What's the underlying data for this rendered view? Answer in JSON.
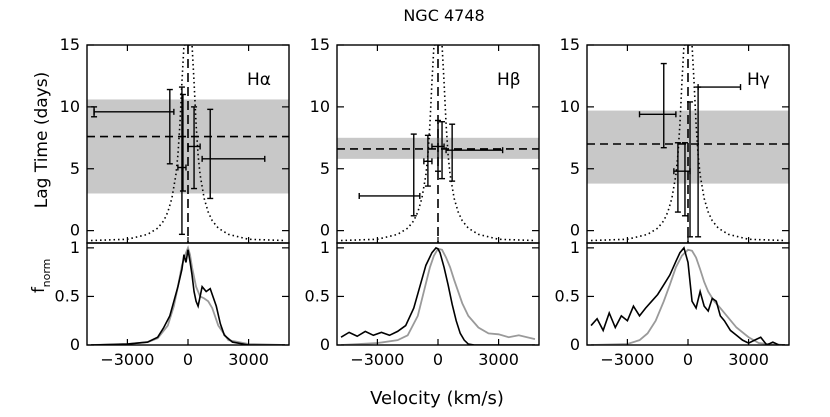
{
  "figure": {
    "title": "NGC 4748",
    "ylabel_top": "Lag Time  (days)",
    "ylabel_bottom": "f",
    "ylabel_bottom_sub": "norm",
    "xlabel": "Velocity  (km/s)"
  },
  "chart_data": [
    {
      "type": "scatter",
      "panel": "H-alpha lag vs velocity",
      "line_label": "Hα",
      "xlim": [
        -5000,
        5000
      ],
      "ylim": [
        -1,
        15
      ],
      "xticks": [
        -3000,
        0,
        3000
      ],
      "yticks": [
        0,
        5,
        10,
        15
      ],
      "mean_lag": 7.6,
      "mean_lag_band": [
        3.0,
        10.6
      ],
      "lag_bins": [
        {
          "xlo": -4650,
          "xhi": -700,
          "x": -4650,
          "y": 9.6,
          "yerr_lo": 9.2,
          "yerr_hi": 10.0
        },
        {
          "xlo": -900,
          "xhi": -900,
          "x": -900,
          "y": 7.6,
          "yerr_lo": 5.4,
          "yerr_hi": 11.4
        },
        {
          "xlo": -500,
          "xhi": -100,
          "x": -300,
          "y": 5.1,
          "yerr_lo": -0.3,
          "yerr_hi": 11.6
        },
        {
          "xlo": -250,
          "xhi": -250,
          "x": -250,
          "y": 7.5,
          "yerr_lo": 3.2,
          "yerr_hi": 11.0
        },
        {
          "xlo": 0,
          "xhi": 600,
          "x": 300,
          "y": 6.8,
          "yerr_lo": 3.4,
          "yerr_hi": 10.0
        },
        {
          "xlo": 700,
          "xhi": 3800,
          "x": 1100,
          "y": 5.8,
          "yerr_lo": 2.6,
          "yerr_hi": 9.8
        }
      ],
      "dotted_lines_x": [
        -550,
        550
      ],
      "dashed_vline_x": 0,
      "rms_profile": {
        "x": [
          -4800,
          -3000,
          -2000,
          -1500,
          -1200,
          -1000,
          -800,
          -600,
          -500,
          -400,
          -300,
          -200,
          -100,
          0,
          100,
          200,
          300,
          400,
          500,
          600,
          800,
          1000,
          1200,
          1500,
          2000,
          3000,
          4800
        ],
        "y": [
          -0.8,
          -0.7,
          -0.3,
          0.2,
          0.8,
          1.5,
          2.6,
          4.5,
          6.1,
          8.6,
          12.0,
          15.0,
          15.0,
          15.0,
          15.0,
          15.0,
          12.0,
          8.6,
          6.1,
          4.5,
          2.6,
          1.5,
          0.8,
          0.2,
          -0.3,
          -0.7,
          -0.8
        ]
      },
      "flux_black": {
        "x": [
          -4800,
          -3000,
          -2000,
          -1500,
          -1200,
          -900,
          -700,
          -500,
          -300,
          -200,
          -100,
          0,
          100,
          200,
          300,
          400,
          500,
          600,
          700,
          900,
          1100,
          1200,
          1400,
          1600,
          1800,
          2200,
          3000,
          4800
        ],
        "y": [
          0.0,
          0.01,
          0.03,
          0.08,
          0.18,
          0.3,
          0.45,
          0.6,
          0.78,
          0.93,
          0.85,
          0.98,
          0.86,
          0.72,
          0.55,
          0.45,
          0.4,
          0.5,
          0.6,
          0.55,
          0.58,
          0.52,
          0.4,
          0.22,
          0.1,
          0.03,
          0.0,
          0.0
        ]
      },
      "flux_grey": {
        "x": [
          -4800,
          -3000,
          -2000,
          -1500,
          -1000,
          -700,
          -500,
          -300,
          -100,
          0,
          100,
          200,
          400,
          600,
          800,
          1000,
          1200,
          1500,
          2000,
          3000,
          4800
        ],
        "y": [
          0.0,
          0.01,
          0.03,
          0.07,
          0.2,
          0.4,
          0.6,
          0.82,
          0.95,
          1.0,
          0.93,
          0.8,
          0.6,
          0.5,
          0.48,
          0.45,
          0.38,
          0.2,
          0.05,
          0.01,
          0.0
        ]
      }
    },
    {
      "type": "scatter",
      "panel": "H-beta lag vs velocity",
      "line_label": "Hβ",
      "xlim": [
        -5000,
        5000
      ],
      "ylim": [
        -1,
        15
      ],
      "xticks": [
        -3000,
        0,
        3000
      ],
      "yticks": [
        0,
        5,
        10,
        15
      ],
      "mean_lag": 6.6,
      "mean_lag_band": [
        5.8,
        7.5
      ],
      "lag_bins": [
        {
          "xlo": -3900,
          "xhi": -900,
          "x": -2400,
          "y": 2.8,
          "yerr_lo": 2.8,
          "yerr_hi": 2.8
        },
        {
          "xlo": -1200,
          "xhi": -1200,
          "x": -1200,
          "y": 3.2,
          "yerr_lo": 1.2,
          "yerr_hi": 7.8
        },
        {
          "xlo": -700,
          "xhi": -300,
          "x": -500,
          "y": 5.6,
          "yerr_lo": 3.6,
          "yerr_hi": 7.7
        },
        {
          "xlo": -300,
          "xhi": 300,
          "x": 0,
          "y": 6.8,
          "yerr_lo": 4.8,
          "yerr_hi": 8.9
        },
        {
          "xlo": 200,
          "xhi": 200,
          "x": 200,
          "y": 6.5,
          "yerr_lo": 4.2,
          "yerr_hi": 8.8
        },
        {
          "xlo": 400,
          "xhi": 3200,
          "x": 1800,
          "y": 6.5,
          "yerr_lo": 6.5,
          "yerr_hi": 6.5
        },
        {
          "xlo": 700,
          "xhi": 700,
          "x": 700,
          "y": 6.2,
          "yerr_lo": 4.0,
          "yerr_hi": 8.6
        }
      ],
      "dotted_lines_x": [
        -550,
        550
      ],
      "dashed_vline_x": 0,
      "rms_profile": {
        "x": [
          -4800,
          -3000,
          -2000,
          -1500,
          -1200,
          -1000,
          -800,
          -600,
          -500,
          -400,
          -300,
          -200,
          -100,
          0,
          100,
          200,
          300,
          400,
          500,
          600,
          800,
          1000,
          1200,
          1500,
          2000,
          3000,
          4800
        ],
        "y": [
          -0.8,
          -0.7,
          -0.3,
          0.2,
          0.8,
          1.5,
          2.6,
          4.5,
          6.1,
          8.6,
          12.0,
          15.0,
          15.0,
          15.0,
          15.0,
          15.0,
          12.0,
          8.6,
          6.1,
          4.5,
          2.6,
          1.5,
          0.8,
          0.2,
          -0.3,
          -0.7,
          -0.8
        ]
      },
      "flux_black": {
        "x": [
          -4800,
          -4400,
          -4000,
          -3600,
          -3200,
          -2800,
          -2400,
          -2000,
          -1600,
          -1200,
          -900,
          -600,
          -300,
          -100,
          0,
          100,
          300,
          500,
          700,
          900,
          1100,
          1300,
          1500,
          1800,
          2200,
          3000,
          4800
        ],
        "y": [
          0.08,
          0.13,
          0.09,
          0.14,
          0.1,
          0.13,
          0.1,
          0.14,
          0.2,
          0.38,
          0.6,
          0.82,
          0.95,
          1.0,
          0.99,
          0.95,
          0.8,
          0.62,
          0.42,
          0.25,
          0.12,
          0.05,
          0.01,
          0.0,
          0.0,
          0.0,
          0.0
        ]
      },
      "flux_grey": {
        "x": [
          -4800,
          -3000,
          -2000,
          -1500,
          -1000,
          -700,
          -400,
          -200,
          0,
          200,
          400,
          600,
          800,
          1000,
          1200,
          1500,
          2000,
          2500,
          3000,
          3500,
          4000,
          4800
        ],
        "y": [
          0.0,
          0.02,
          0.05,
          0.1,
          0.3,
          0.55,
          0.8,
          0.92,
          0.99,
          0.98,
          0.9,
          0.8,
          0.67,
          0.55,
          0.43,
          0.3,
          0.18,
          0.12,
          0.11,
          0.08,
          0.1,
          0.06
        ]
      }
    },
    {
      "type": "scatter",
      "panel": "H-gamma lag vs velocity",
      "line_label": "Hγ",
      "xlim": [
        -5000,
        5000
      ],
      "ylim": [
        -1,
        15
      ],
      "xticks": [
        -3000,
        0,
        3000
      ],
      "yticks": [
        0,
        5,
        10,
        15
      ],
      "mean_lag": 7.0,
      "mean_lag_band": [
        3.8,
        9.7
      ],
      "lag_bins": [
        {
          "xlo": -2400,
          "xhi": -600,
          "x": -1200,
          "y": 9.4,
          "yerr_lo": 6.7,
          "yerr_hi": 13.5
        },
        {
          "xlo": -700,
          "xhi": 100,
          "x": -500,
          "y": 4.8,
          "yerr_lo": 1.5,
          "yerr_hi": 7.1
        },
        {
          "xlo": -150,
          "xhi": -150,
          "x": -150,
          "y": 4.8,
          "yerr_lo": 1.2,
          "yerr_hi": 7.1
        },
        {
          "xlo": 100,
          "xhi": 100,
          "x": 100,
          "y": 5.0,
          "yerr_lo": -0.5,
          "yerr_hi": 10.4
        },
        {
          "xlo": 500,
          "xhi": 2600,
          "x": 500,
          "y": 11.6,
          "yerr_lo": -0.5,
          "yerr_hi": 11.6
        }
      ],
      "dotted_lines_x": [
        -550,
        550
      ],
      "dashed_vline_x": 0,
      "rms_profile": {
        "x": [
          -4800,
          -3000,
          -2000,
          -1500,
          -1200,
          -1000,
          -800,
          -600,
          -500,
          -400,
          -300,
          -200,
          -100,
          0,
          100,
          200,
          300,
          400,
          500,
          600,
          800,
          1000,
          1200,
          1500,
          2000,
          3000,
          4800
        ],
        "y": [
          -0.8,
          -0.7,
          -0.3,
          0.2,
          0.8,
          1.5,
          2.6,
          4.5,
          6.1,
          8.6,
          12.0,
          15.0,
          15.0,
          15.0,
          15.0,
          15.0,
          12.0,
          8.6,
          6.1,
          4.5,
          2.6,
          1.5,
          0.8,
          0.2,
          -0.3,
          -0.7,
          -0.8
        ]
      },
      "flux_black": {
        "x": [
          -4800,
          -4500,
          -4200,
          -3900,
          -3600,
          -3300,
          -3000,
          -2700,
          -2400,
          -2100,
          -1800,
          -1500,
          -1200,
          -900,
          -600,
          -400,
          -200,
          0,
          200,
          400,
          600,
          800,
          1000,
          1200,
          1400,
          1600,
          1800,
          2100,
          2400,
          2700,
          3000,
          3300,
          3600,
          3900,
          4200,
          4500,
          4800
        ],
        "y": [
          0.2,
          0.27,
          0.15,
          0.33,
          0.18,
          0.3,
          0.25,
          0.4,
          0.3,
          0.38,
          0.45,
          0.52,
          0.62,
          0.72,
          0.86,
          0.95,
          1.0,
          0.85,
          0.45,
          0.38,
          0.55,
          0.4,
          0.35,
          0.48,
          0.45,
          0.3,
          0.25,
          0.15,
          0.1,
          0.05,
          0.02,
          0.05,
          0.08,
          0.0,
          0.03,
          0.0,
          0.0
        ]
      },
      "flux_grey": {
        "x": [
          -4800,
          -3000,
          -2400,
          -2000,
          -1600,
          -1200,
          -900,
          -600,
          -300,
          0,
          200,
          400,
          600,
          800,
          1000,
          1300,
          1600,
          2000,
          2400,
          3000,
          3500,
          4000,
          4800
        ],
        "y": [
          0.0,
          0.01,
          0.05,
          0.12,
          0.25,
          0.45,
          0.62,
          0.8,
          0.92,
          0.98,
          0.97,
          0.9,
          0.78,
          0.65,
          0.55,
          0.45,
          0.38,
          0.28,
          0.18,
          0.08,
          0.02,
          0.01,
          0.0
        ]
      }
    }
  ]
}
